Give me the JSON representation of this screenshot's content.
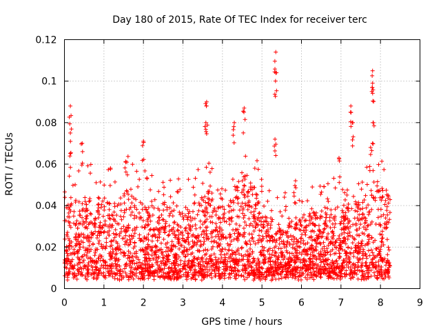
{
  "chart_data": {
    "type": "scatter",
    "title": "Day 180 of 2015, Rate Of TEC Index for receiver terc",
    "xlabel": "GPS time / hours",
    "ylabel": "ROTI / TECUs",
    "xlim": [
      0,
      9
    ],
    "ylim": [
      0,
      0.12
    ],
    "xticks": [
      0,
      1,
      2,
      3,
      4,
      5,
      6,
      7,
      8,
      9
    ],
    "xtick_labels": [
      "0",
      "1",
      "2",
      "3",
      "4",
      "5",
      "6",
      "7",
      "8",
      "9"
    ],
    "yticks": [
      0,
      0.02,
      0.04,
      0.06,
      0.08,
      0.1,
      0.12
    ],
    "ytick_labels": [
      "0",
      "0.02",
      "0.04",
      "0.06",
      "0.08",
      "0.1",
      "0.12"
    ],
    "grid": true,
    "marker": "plus",
    "series": [
      {
        "name": "ROTI",
        "color": "#ff0000",
        "x_range": [
          0,
          8.25
        ],
        "typical_band": [
          0.005,
          0.045
        ],
        "peaks": [
          {
            "x": 0.15,
            "y": 0.088
          },
          {
            "x": 0.15,
            "y": 0.075
          },
          {
            "x": 0.45,
            "y": 0.07
          },
          {
            "x": 2.0,
            "y": 0.071
          },
          {
            "x": 3.6,
            "y": 0.09
          },
          {
            "x": 3.58,
            "y": 0.08
          },
          {
            "x": 4.3,
            "y": 0.08
          },
          {
            "x": 4.55,
            "y": 0.087
          },
          {
            "x": 5.35,
            "y": 0.114
          },
          {
            "x": 5.35,
            "y": 0.104
          },
          {
            "x": 5.33,
            "y": 0.072
          },
          {
            "x": 5.85,
            "y": 0.052
          },
          {
            "x": 6.95,
            "y": 0.063
          },
          {
            "x": 7.25,
            "y": 0.088
          },
          {
            "x": 7.3,
            "y": 0.08
          },
          {
            "x": 7.8,
            "y": 0.105
          },
          {
            "x": 7.8,
            "y": 0.099
          },
          {
            "x": 7.82,
            "y": 0.08
          },
          {
            "x": 7.75,
            "y": 0.068
          }
        ]
      }
    ]
  }
}
